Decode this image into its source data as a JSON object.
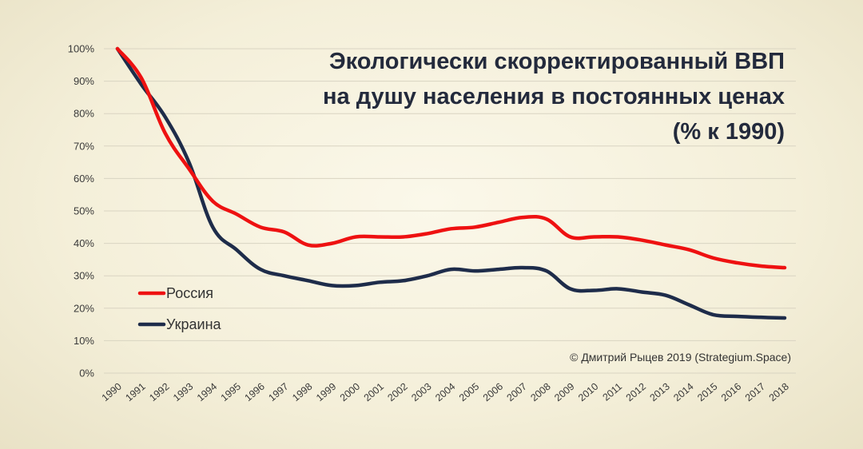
{
  "chart_data": {
    "type": "line",
    "title": [
      "Экологически скорректированный ВВП",
      "на душу населения в постоянных ценах",
      "(% к 1990)"
    ],
    "credit": "© Дмитрий Рыцев 2019 (Strategium.Space)",
    "x": [
      "1990",
      "1991",
      "1992",
      "1993",
      "1994",
      "1995",
      "1996",
      "1997",
      "1998",
      "1999",
      "2000",
      "2001",
      "2002",
      "2003",
      "2004",
      "2005",
      "2006",
      "2007",
      "2008",
      "2009",
      "2010",
      "2011",
      "2012",
      "2013",
      "2014",
      "2015",
      "2016",
      "2017",
      "2018"
    ],
    "yticks": [
      "0%",
      "10%",
      "20%",
      "30%",
      "40%",
      "50%",
      "60%",
      "70%",
      "80%",
      "90%",
      "100%"
    ],
    "ylim": [
      0,
      100
    ],
    "grid": true,
    "legend_position": "left",
    "series": [
      {
        "name": "Россия",
        "color": "#ee1111",
        "values": [
          100,
          91,
          74,
          63,
          53,
          49,
          45,
          43.5,
          39.5,
          40,
          42,
          42,
          42,
          43,
          44.5,
          45,
          46.5,
          48,
          47.5,
          42,
          42,
          42,
          41,
          39.5,
          38,
          35.5,
          34,
          33,
          32.5
        ]
      },
      {
        "name": "Украина",
        "color": "#1e2c4a",
        "values": [
          100,
          89,
          79,
          65,
          45,
          38,
          32,
          30,
          28.5,
          27,
          27,
          28,
          28.5,
          30,
          32,
          31.5,
          32,
          32.5,
          31.5,
          26,
          25.5,
          26,
          25,
          24,
          21,
          18,
          17.5,
          17.2,
          17
        ]
      }
    ]
  }
}
